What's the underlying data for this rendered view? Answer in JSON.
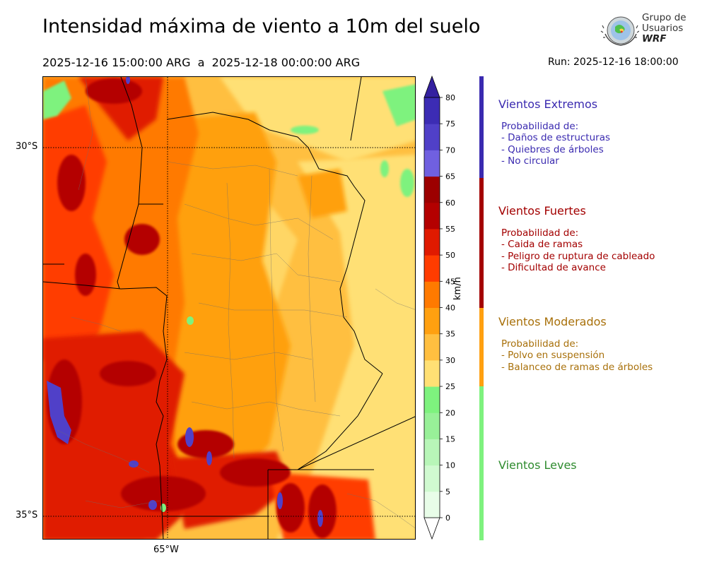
{
  "header": {
    "title": "Intensidad máxima de viento a 10m del suelo",
    "period_start": "2025-12-16 15:00:00 ARG",
    "period_sep": "a",
    "period_end": "2025-12-18 00:00:00 ARG",
    "run": "Run: 2025-12-16 18:00:00"
  },
  "logo": {
    "line1": "Grupo de",
    "line2": "Usuarios",
    "line3": "WRF"
  },
  "map": {
    "lat_labels": [
      "30°S",
      "35°S"
    ],
    "lon_labels": [
      "65°W"
    ],
    "colors": {
      "light_green": "#7ef27e",
      "yellow": "#ffe074",
      "light_orange": "#ffbf40",
      "orange": "#ffa010",
      "dark_orange": "#ff6a00",
      "red_orange": "#ff3c00",
      "red": "#e01a00",
      "dark_red": "#b40000",
      "purple": "#5040c8"
    }
  },
  "colorbar": {
    "unit": "km/h",
    "ticks": [
      "0",
      "5",
      "10",
      "15",
      "20",
      "25",
      "30",
      "35",
      "40",
      "45",
      "50",
      "55",
      "60",
      "65",
      "70",
      "75",
      "80"
    ],
    "colors": [
      "#e8fde8",
      "#d0fad0",
      "#b8f6b8",
      "#98f098",
      "#7ef27e",
      "#ffe074",
      "#ffbf40",
      "#ffa010",
      "#ff7a00",
      "#ff3c00",
      "#e01a00",
      "#b40000",
      "#9c0000",
      "#7060e0",
      "#5040c8",
      "#3c2cb4"
    ]
  },
  "categories": [
    {
      "title": "Vientos Extremos",
      "color": "#3a2ab0",
      "prob_header": "Probabilidad de:",
      "items": [
        "- Daños de estructuras",
        "- Quiebres de árboles",
        "- No circular"
      ]
    },
    {
      "title": "Vientos Fuertes",
      "color": "#a30000",
      "prob_header": "Probabilidad de:",
      "items": [
        "- Caida de ramas",
        "- Peligro de ruptura de cableado",
        "- Dificultad de avance"
      ]
    },
    {
      "title": "Vientos Moderados",
      "color": "#a8700a",
      "bar_color": "#ffa010",
      "prob_header": "Probabilidad de:",
      "items": [
        "- Polvo en suspensión",
        "- Balanceo de ramas de árboles"
      ]
    },
    {
      "title": "Vientos Leves",
      "color": "#2e8b2e",
      "bar_color": "#7ef27e"
    }
  ]
}
